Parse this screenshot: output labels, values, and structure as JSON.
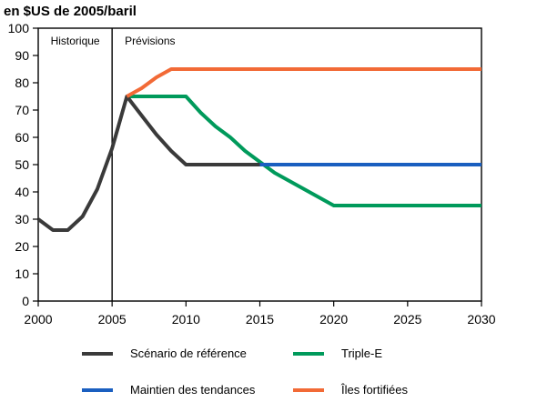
{
  "chart_data": {
    "type": "line",
    "title": "en $US de 2005/baril",
    "xlabel": "",
    "ylabel": "",
    "xlim": [
      2000,
      2030
    ],
    "ylim": [
      0,
      100
    ],
    "x_ticks": [
      2000,
      2005,
      2010,
      2015,
      2020,
      2025,
      2030
    ],
    "y_ticks": [
      0,
      10,
      20,
      30,
      40,
      50,
      60,
      70,
      80,
      90,
      100
    ],
    "grid": false,
    "legend_position": "bottom",
    "divider": {
      "x": 2005,
      "left_label": "Historique",
      "right_label": "Prévisions"
    },
    "series": [
      {
        "name": "Scénario de référence",
        "color": "#3a3a3a",
        "points": [
          [
            2000,
            30
          ],
          [
            2001,
            26
          ],
          [
            2002,
            26
          ],
          [
            2003,
            31
          ],
          [
            2004,
            41
          ],
          [
            2005,
            56
          ],
          [
            2006,
            75
          ],
          [
            2007,
            68
          ],
          [
            2008,
            61
          ],
          [
            2009,
            55
          ],
          [
            2010,
            50
          ],
          [
            2011,
            50
          ],
          [
            2012,
            50
          ],
          [
            2013,
            50
          ],
          [
            2014,
            50
          ],
          [
            2015,
            50
          ]
        ]
      },
      {
        "name": "Triple-E",
        "color": "#009a5b",
        "points": [
          [
            2006,
            75
          ],
          [
            2010,
            75
          ],
          [
            2011,
            69
          ],
          [
            2012,
            64
          ],
          [
            2013,
            60
          ],
          [
            2014,
            55
          ],
          [
            2015,
            51
          ],
          [
            2016,
            47
          ],
          [
            2018,
            41
          ],
          [
            2020,
            35
          ],
          [
            2030,
            35
          ]
        ]
      },
      {
        "name": "Maintien des tendances",
        "color": "#1a5fc0",
        "points": [
          [
            2015,
            50
          ],
          [
            2030,
            50
          ]
        ]
      },
      {
        "name": "Îles fortifiées",
        "color": "#f26a36",
        "points": [
          [
            2006,
            75
          ],
          [
            2007,
            78
          ],
          [
            2008,
            82
          ],
          [
            2009,
            85
          ],
          [
            2030,
            85
          ]
        ]
      }
    ],
    "legend_order": [
      "Scénario de référence",
      "Triple-E",
      "Maintien des tendances",
      "Îles fortifiées"
    ]
  }
}
